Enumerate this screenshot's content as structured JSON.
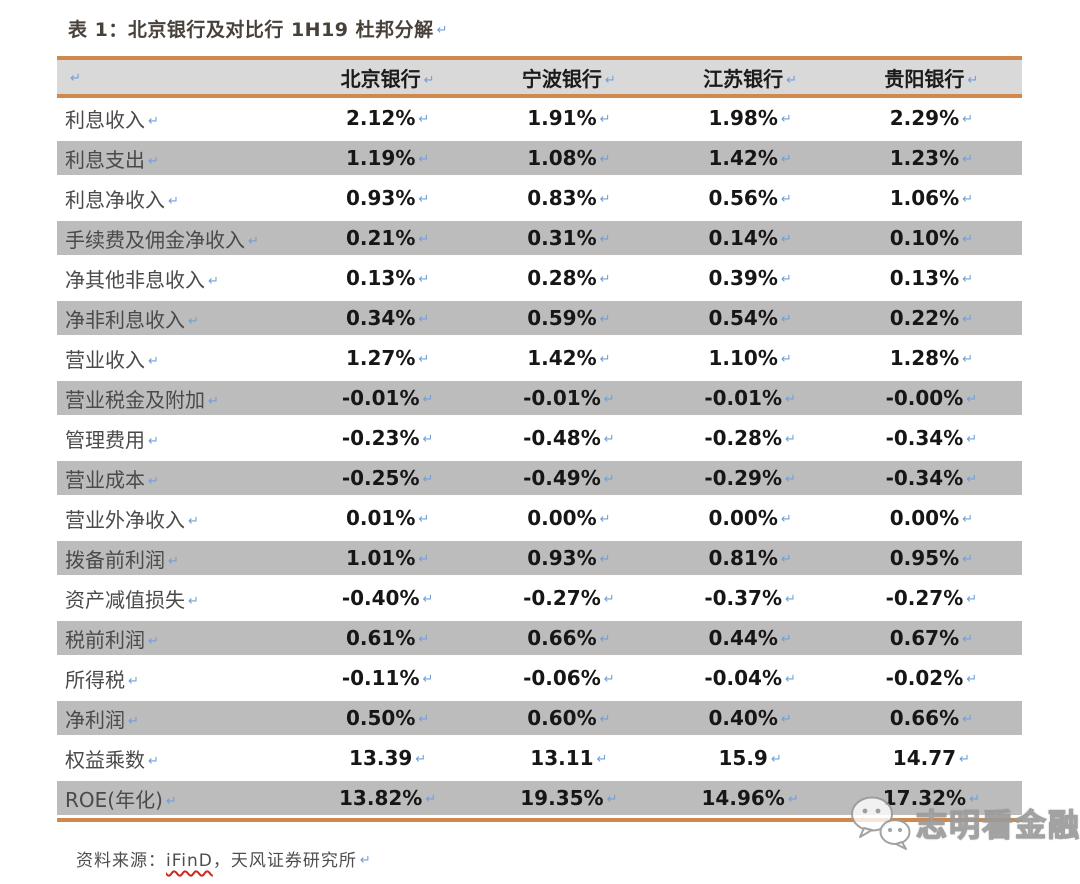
{
  "title": {
    "text": "表 1：北京银行及对比行 1H19 杜邦分解"
  },
  "pilcrow": "↵",
  "table": {
    "columns": [
      "北京银行",
      "宁波银行",
      "江苏银行",
      "贵阳银行"
    ],
    "rows": [
      {
        "label": "利息收入",
        "values": [
          "2.12%",
          "1.91%",
          "1.98%",
          "2.29%"
        ]
      },
      {
        "label": "利息支出",
        "values": [
          "1.19%",
          "1.08%",
          "1.42%",
          "1.23%"
        ]
      },
      {
        "label": "利息净收入",
        "values": [
          "0.93%",
          "0.83%",
          "0.56%",
          "1.06%"
        ]
      },
      {
        "label": "手续费及佣金净收入",
        "values": [
          "0.21%",
          "0.31%",
          "0.14%",
          "0.10%"
        ]
      },
      {
        "label": "净其他非息收入",
        "values": [
          "0.13%",
          "0.28%",
          "0.39%",
          "0.13%"
        ]
      },
      {
        "label": "净非利息收入",
        "values": [
          "0.34%",
          "0.59%",
          "0.54%",
          "0.22%"
        ]
      },
      {
        "label": "营业收入",
        "values": [
          "1.27%",
          "1.42%",
          "1.10%",
          "1.28%"
        ]
      },
      {
        "label": "营业税金及附加",
        "values": [
          "-0.01%",
          "-0.01%",
          "-0.01%",
          "-0.00%"
        ]
      },
      {
        "label": "管理费用",
        "values": [
          "-0.23%",
          "-0.48%",
          "-0.28%",
          "-0.34%"
        ]
      },
      {
        "label": "营业成本",
        "values": [
          "-0.25%",
          "-0.49%",
          "-0.29%",
          "-0.34%"
        ]
      },
      {
        "label": "营业外净收入",
        "values": [
          "0.01%",
          "0.00%",
          "0.00%",
          "0.00%"
        ]
      },
      {
        "label": "拨备前利润",
        "values": [
          "1.01%",
          "0.93%",
          "0.81%",
          "0.95%"
        ]
      },
      {
        "label": "资产减值损失",
        "values": [
          "-0.40%",
          "-0.27%",
          "-0.37%",
          "-0.27%"
        ]
      },
      {
        "label": "税前利润",
        "values": [
          "0.61%",
          "0.66%",
          "0.44%",
          "0.67%"
        ]
      },
      {
        "label": "所得税",
        "values": [
          "-0.11%",
          "-0.06%",
          "-0.04%",
          "-0.02%"
        ]
      },
      {
        "label": "净利润",
        "values": [
          "0.50%",
          "0.60%",
          "0.40%",
          "0.66%"
        ]
      },
      {
        "label": "权益乘数",
        "values": [
          "13.39",
          "13.11",
          "15.9",
          "14.77"
        ]
      },
      {
        "label": "ROE(年化)",
        "values": [
          "13.82%",
          "19.35%",
          "14.96%",
          "17.32%"
        ]
      }
    ]
  },
  "chart_data": {
    "type": "table",
    "title": "表 1：北京银行及对比行 1H19 杜邦分解",
    "categories": [
      "北京银行",
      "宁波银行",
      "江苏银行",
      "贵阳银行"
    ],
    "series": [
      {
        "name": "利息收入",
        "values": [
          2.12,
          1.91,
          1.98,
          2.29
        ],
        "unit": "%"
      },
      {
        "name": "利息支出",
        "values": [
          1.19,
          1.08,
          1.42,
          1.23
        ],
        "unit": "%"
      },
      {
        "name": "利息净收入",
        "values": [
          0.93,
          0.83,
          0.56,
          1.06
        ],
        "unit": "%"
      },
      {
        "name": "手续费及佣金净收入",
        "values": [
          0.21,
          0.31,
          0.14,
          0.1
        ],
        "unit": "%"
      },
      {
        "name": "净其他非息收入",
        "values": [
          0.13,
          0.28,
          0.39,
          0.13
        ],
        "unit": "%"
      },
      {
        "name": "净非利息收入",
        "values": [
          0.34,
          0.59,
          0.54,
          0.22
        ],
        "unit": "%"
      },
      {
        "name": "营业收入",
        "values": [
          1.27,
          1.42,
          1.1,
          1.28
        ],
        "unit": "%"
      },
      {
        "name": "营业税金及附加",
        "values": [
          -0.01,
          -0.01,
          -0.01,
          -0.0
        ],
        "unit": "%"
      },
      {
        "name": "管理费用",
        "values": [
          -0.23,
          -0.48,
          -0.28,
          -0.34
        ],
        "unit": "%"
      },
      {
        "name": "营业成本",
        "values": [
          -0.25,
          -0.49,
          -0.29,
          -0.34
        ],
        "unit": "%"
      },
      {
        "name": "营业外净收入",
        "values": [
          0.01,
          0.0,
          0.0,
          0.0
        ],
        "unit": "%"
      },
      {
        "name": "拨备前利润",
        "values": [
          1.01,
          0.93,
          0.81,
          0.95
        ],
        "unit": "%"
      },
      {
        "name": "资产减值损失",
        "values": [
          -0.4,
          -0.27,
          -0.37,
          -0.27
        ],
        "unit": "%"
      },
      {
        "name": "税前利润",
        "values": [
          0.61,
          0.66,
          0.44,
          0.67
        ],
        "unit": "%"
      },
      {
        "name": "所得税",
        "values": [
          -0.11,
          -0.06,
          -0.04,
          -0.02
        ],
        "unit": "%"
      },
      {
        "name": "净利润",
        "values": [
          0.5,
          0.6,
          0.4,
          0.66
        ],
        "unit": "%"
      },
      {
        "name": "权益乘数",
        "values": [
          13.39,
          13.11,
          15.9,
          14.77
        ],
        "unit": "x"
      },
      {
        "name": "ROE(年化)",
        "values": [
          13.82,
          19.35,
          14.96,
          17.32
        ],
        "unit": "%"
      }
    ]
  },
  "source": {
    "prefix": "资料来源：",
    "tool": "iFinD",
    "suffix": "，天风证券研究所"
  },
  "watermark": {
    "text": "志明看金融"
  },
  "colors": {
    "accent_orange": "#d0884c",
    "row_gray": "#bcbcbc",
    "header_gray": "#d9d9d9",
    "pilcrow_blue": "#6fa0d8",
    "title_color": "#47413a",
    "value_color": "#161616",
    "label_color": "#4a4a4a",
    "source_color": "#4e4e4e",
    "squiggle_red": "#cc2a1a"
  }
}
